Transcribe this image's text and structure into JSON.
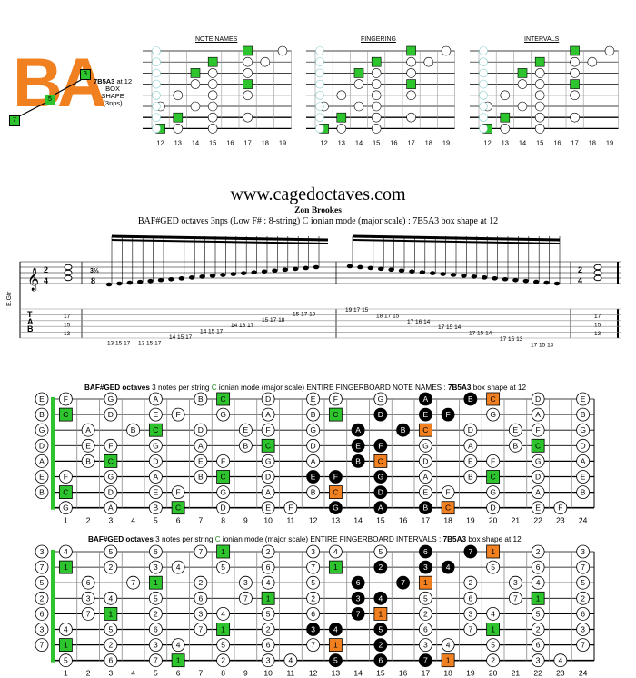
{
  "logo": {
    "letters": "BA",
    "boxes": [
      "3",
      "5",
      "7"
    ]
  },
  "shape_code": {
    "line1_bold": "7B5A3",
    "line1_rest": " at 12",
    "line2": "BOX",
    "line3": "SHAPE",
    "line4": "(3nps)"
  },
  "mini_titles": [
    "NOTE NAMES",
    "FINGERING",
    "INTERVALS"
  ],
  "mini_frets": [
    "12",
    "13",
    "14",
    "15",
    "16",
    "17",
    "18",
    "19"
  ],
  "site": "www.cagedoctaves.com",
  "author": "Zon Brookes",
  "subtitle": "BAF#GED octaves 3nps (Low F# : 8-string) C ionian mode (major scale) : 7B5A3 box shape at 12",
  "staff": {
    "time_top": "2",
    "time_bottom": "4",
    "time2_top": "3⅔",
    "time2_bottom": "8",
    "tuning_label": "E.Gtr",
    "tab_letters": [
      "T",
      "A",
      "B"
    ]
  },
  "tab_numbers": {
    "left_open": [
      "17",
      "15",
      "13"
    ],
    "right_open": [
      "17",
      "15",
      "13"
    ],
    "asc": [
      "13 15 17",
      "13 15 17",
      "14 15 17",
      "14 15 17",
      "14 16 17",
      "15 17 18",
      "15 17 19"
    ],
    "desc": [
      "19 17 15",
      "18 17 15",
      "17 16 14",
      "17 15 14",
      "17 15 14",
      "17 15 13",
      "17 15 13"
    ]
  },
  "fb1": {
    "title_bold": "BAF#GED octaves",
    "title_rest": " 3 notes per string ",
    "title_key": "C",
    "title_rest2": " ionian mode (major scale) ENTIRE FINGERBOARD  NOTE NAMES : ",
    "title_shape": "7B5A3",
    "title_end": " box shape at 12",
    "strings": [
      [
        "E",
        "F",
        "",
        "G",
        "",
        "A",
        "",
        "B",
        "C",
        "",
        "D",
        "",
        "E",
        "F",
        "",
        "G",
        "",
        "A",
        "",
        "B",
        "C",
        "",
        "D",
        "",
        "E"
      ],
      [
        "B",
        "C",
        "",
        "D",
        "",
        "E",
        "F",
        "",
        "G",
        "",
        "A",
        "",
        "B",
        "C",
        "",
        "D",
        "",
        "E",
        "F",
        "",
        "G",
        "",
        "A",
        "",
        "B"
      ],
      [
        "G",
        "",
        "A",
        "",
        "B",
        "C",
        "",
        "D",
        "",
        "E",
        "F",
        "",
        "G",
        "",
        "A",
        "",
        "B",
        "C",
        "",
        "D",
        "",
        "E",
        "F",
        "",
        "G"
      ],
      [
        "D",
        "",
        "E",
        "F",
        "",
        "G",
        "",
        "A",
        "",
        "B",
        "C",
        "",
        "D",
        "",
        "E",
        "F",
        "",
        "G",
        "",
        "A",
        "",
        "B",
        "C",
        "",
        "D"
      ],
      [
        "A",
        "",
        "B",
        "C",
        "",
        "D",
        "",
        "E",
        "F",
        "",
        "G",
        "",
        "A",
        "",
        "B",
        "C",
        "",
        "D",
        "",
        "E",
        "F",
        "",
        "G",
        "",
        "A"
      ],
      [
        "E",
        "F",
        "",
        "G",
        "",
        "A",
        "",
        "B",
        "C",
        "",
        "D",
        "",
        "E",
        "F",
        "",
        "G",
        "",
        "A",
        "",
        "B",
        "C",
        "",
        "D",
        "",
        "E"
      ],
      [
        "B",
        "C",
        "",
        "D",
        "",
        "E",
        "F",
        "",
        "G",
        "",
        "A",
        "",
        "B",
        "C",
        "",
        "D",
        "",
        "E",
        "F",
        "",
        "G",
        "",
        "A",
        "",
        "B"
      ],
      [
        "",
        "G",
        "",
        "A",
        "",
        "B",
        "C",
        "",
        "D",
        "",
        "E",
        "F",
        "",
        "G",
        "",
        "A",
        "",
        "B",
        "C",
        "",
        "D",
        "",
        "E",
        "F",
        ""
      ]
    ]
  },
  "fb2": {
    "title_bold": "BAF#GED octaves",
    "title_rest": " 3 notes per string ",
    "title_key": "C",
    "title_rest2": " ionian mode (major scale) ENTIRE FINGERBOARD INTERVALS : ",
    "title_shape": "7B5A3",
    "title_end": " box shape at 12",
    "strings": [
      [
        "3",
        "4",
        "",
        "5",
        "",
        "6",
        "",
        "7",
        "1",
        "",
        "2",
        "",
        "3",
        "4",
        "",
        "5",
        "",
        "6",
        "",
        "7",
        "1",
        "",
        "2",
        "",
        "3"
      ],
      [
        "7",
        "1",
        "",
        "2",
        "",
        "3",
        "4",
        "",
        "5",
        "",
        "6",
        "",
        "7",
        "1",
        "",
        "2",
        "",
        "3",
        "4",
        "",
        "5",
        "",
        "6",
        "",
        "7"
      ],
      [
        "5",
        "",
        "6",
        "",
        "7",
        "1",
        "",
        "2",
        "",
        "3",
        "4",
        "",
        "5",
        "",
        "6",
        "",
        "7",
        "1",
        "",
        "2",
        "",
        "3",
        "4",
        "",
        "5"
      ],
      [
        "2",
        "",
        "3",
        "4",
        "",
        "5",
        "",
        "6",
        "",
        "7",
        "1",
        "",
        "2",
        "",
        "3",
        "4",
        "",
        "5",
        "",
        "6",
        "",
        "7",
        "1",
        "",
        "2"
      ],
      [
        "6",
        "",
        "7",
        "1",
        "",
        "2",
        "",
        "3",
        "4",
        "",
        "5",
        "",
        "6",
        "",
        "7",
        "1",
        "",
        "2",
        "",
        "3",
        "4",
        "",
        "5",
        "",
        "6"
      ],
      [
        "3",
        "4",
        "",
        "5",
        "",
        "6",
        "",
        "7",
        "1",
        "",
        "2",
        "",
        "3",
        "4",
        "",
        "5",
        "",
        "6",
        "",
        "7",
        "1",
        "",
        "2",
        "",
        "3"
      ],
      [
        "7",
        "1",
        "",
        "2",
        "",
        "3",
        "4",
        "",
        "5",
        "",
        "6",
        "",
        "7",
        "1",
        "",
        "2",
        "",
        "3",
        "4",
        "",
        "5",
        "",
        "6",
        "",
        "7"
      ],
      [
        "",
        "5",
        "",
        "6",
        "",
        "7",
        "1",
        "",
        "2",
        "",
        "3",
        "4",
        "",
        "5",
        "",
        "6",
        "",
        "7",
        "1",
        "",
        "2",
        "",
        "3",
        "4",
        ""
      ]
    ]
  },
  "fret_numbers": [
    "1",
    "2",
    "3",
    "4",
    "5",
    "6",
    "7",
    "8",
    "9",
    "10",
    "11",
    "12",
    "13",
    "14",
    "15",
    "16",
    "17",
    "18",
    "19",
    "20",
    "21",
    "22",
    "23",
    "24"
  ],
  "colors": {
    "root": "#2ec42e",
    "shape_root": "#f08020",
    "shape_note": "#000000",
    "logo": "#f08020"
  }
}
